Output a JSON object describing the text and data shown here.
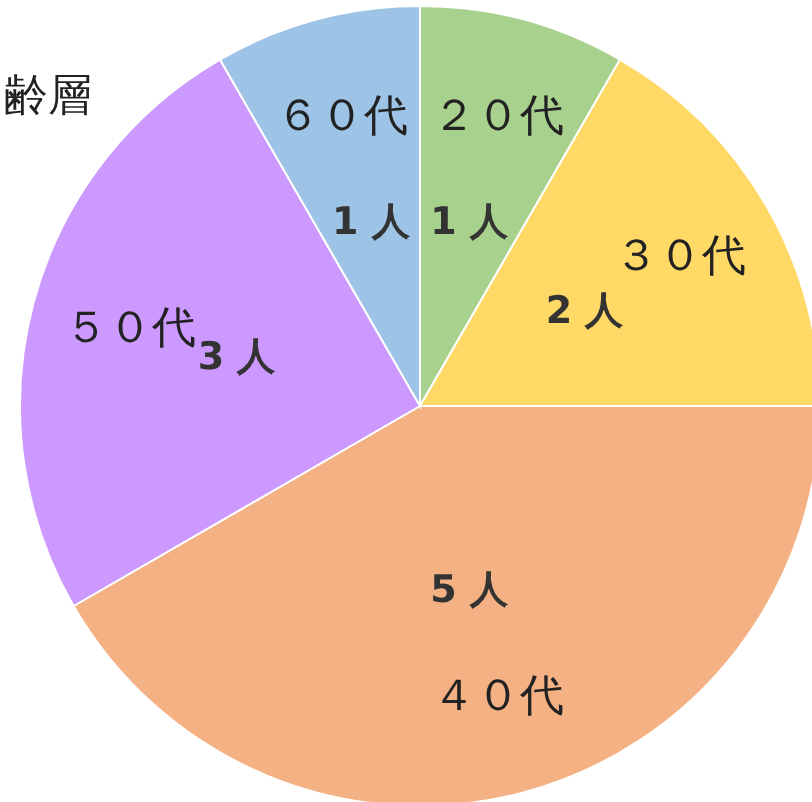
{
  "chart_data": {
    "type": "pie",
    "title": "齢層",
    "categories": [
      "２０代",
      "３０代",
      "４０代",
      "５０代",
      "６０代"
    ],
    "values": [
      1,
      2,
      5,
      3,
      1
    ],
    "colors": [
      "#a9d18e",
      "#ffd966",
      "#f4b183",
      "#cc99ff",
      "#9dc3e6"
    ],
    "value_labels": [
      "1 人",
      "2 人",
      "5 人",
      "3 人",
      "1 人"
    ]
  }
}
